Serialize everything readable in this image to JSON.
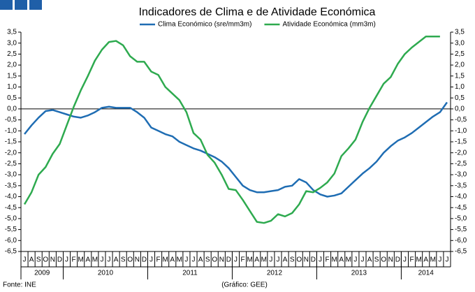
{
  "chart_data": {
    "type": "line",
    "title": "Indicadores de Clima e de Atividade Económica",
    "categories": [
      "J",
      "A",
      "S",
      "O",
      "N",
      "D",
      "J",
      "F",
      "M",
      "A",
      "M",
      "J",
      "J",
      "A",
      "S",
      "O",
      "N",
      "D",
      "J",
      "F",
      "M",
      "A",
      "M",
      "J",
      "J",
      "A",
      "S",
      "O",
      "N",
      "D",
      "J",
      "F",
      "M",
      "A",
      "M",
      "J",
      "J",
      "A",
      "S",
      "O",
      "N",
      "D",
      "J",
      "F",
      "M",
      "A",
      "M",
      "J",
      "J",
      "A",
      "S",
      "O",
      "N",
      "D",
      "J",
      "F",
      "M",
      "A",
      "M",
      "J",
      "J"
    ],
    "years": [
      "2009",
      "2010",
      "2011",
      "2012",
      "2013",
      "2014"
    ],
    "series": [
      {
        "name": "Clima Económico (sre/mm3m)",
        "color": "#1f6db3",
        "values": [
          -1.15,
          -0.75,
          -0.4,
          -0.1,
          -0.05,
          -0.15,
          -0.25,
          -0.35,
          -0.4,
          -0.3,
          -0.15,
          0.05,
          0.1,
          0.05,
          0.05,
          0.05,
          -0.15,
          -0.4,
          -0.85,
          -1.0,
          -1.15,
          -1.25,
          -1.5,
          -1.65,
          -1.8,
          -1.9,
          -2.05,
          -2.2,
          -2.4,
          -2.7,
          -3.1,
          -3.5,
          -3.7,
          -3.8,
          -3.8,
          -3.75,
          -3.7,
          -3.55,
          -3.5,
          -3.2,
          -3.35,
          -3.7,
          -3.9,
          -4.0,
          -3.95,
          -3.85,
          -3.55,
          -3.25,
          -2.95,
          -2.7,
          -2.4,
          -2.0,
          -1.7,
          -1.45,
          -1.3,
          -1.1,
          -0.85,
          -0.6,
          -0.35,
          -0.15,
          0.3
        ]
      },
      {
        "name": "Atividade Económica (mm3m)",
        "color": "#2eaa4f",
        "values": [
          -4.35,
          -3.8,
          -3.0,
          -2.65,
          -2.05,
          -1.6,
          -0.75,
          0.1,
          0.85,
          1.5,
          2.2,
          2.7,
          3.05,
          3.1,
          2.9,
          2.4,
          2.15,
          2.15,
          1.7,
          1.55,
          1.0,
          0.7,
          0.4,
          -0.15,
          -1.1,
          -1.4,
          -2.1,
          -2.45,
          -3.0,
          -3.65,
          -3.7,
          -4.15,
          -4.65,
          -5.15,
          -5.2,
          -5.1,
          -4.8,
          -4.9,
          -4.75,
          -4.35,
          -3.75,
          -3.8,
          -3.6,
          -3.35,
          -2.95,
          -2.15,
          -1.8,
          -1.4,
          -0.6,
          0.05,
          0.6,
          1.15,
          1.45,
          2.05,
          2.5,
          2.8,
          3.05,
          3.3,
          3.3,
          3.3,
          null
        ]
      }
    ],
    "ylim": [
      -6.5,
      3.5
    ],
    "yticks": [
      {
        "value": 3.5,
        "label": "3,5"
      },
      {
        "value": 3.0,
        "label": "3,0"
      },
      {
        "value": 2.5,
        "label": "2,5"
      },
      {
        "value": 2.0,
        "label": "2,0"
      },
      {
        "value": 1.5,
        "label": "1,5"
      },
      {
        "value": 1.0,
        "label": "1,0"
      },
      {
        "value": 0.5,
        "label": "0,5"
      },
      {
        "value": 0.0,
        "label": "0,0"
      },
      {
        "value": -0.5,
        "label": "-0,5"
      },
      {
        "value": -1.0,
        "label": "-1,0"
      },
      {
        "value": -1.5,
        "label": "-1,5"
      },
      {
        "value": -2.0,
        "label": "-2,0"
      },
      {
        "value": -2.5,
        "label": "-2,5"
      },
      {
        "value": -3.0,
        "label": "-3,0"
      },
      {
        "value": -3.5,
        "label": "-3,5"
      },
      {
        "value": -4.0,
        "label": "-4,0"
      },
      {
        "value": -4.5,
        "label": "-4,5"
      },
      {
        "value": -5.0,
        "label": "-5,0"
      },
      {
        "value": -5.5,
        "label": "-5,5"
      },
      {
        "value": -6.0,
        "label": "-6,0"
      },
      {
        "value": -6.5,
        "label": "-6,5"
      }
    ],
    "source": "Fonte: INE",
    "credit": "(Gráfico: GEE)"
  }
}
